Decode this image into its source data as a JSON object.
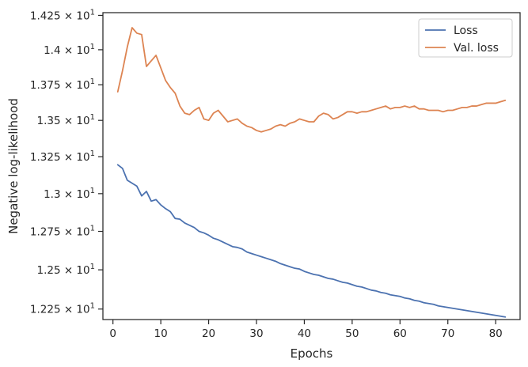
{
  "chart_data": {
    "type": "line",
    "xlabel": "Epochs",
    "ylabel": "Negative log-likelihood",
    "xlim": [
      -2.1,
      85.1
    ],
    "ylim": [
      12.184,
      14.27
    ],
    "x_ticks": [
      0,
      10,
      20,
      30,
      40,
      50,
      60,
      70,
      80
    ],
    "y_ticks": [
      {
        "value": 12.25,
        "mantissa": "1.225"
      },
      {
        "value": 12.5,
        "mantissa": "1.25"
      },
      {
        "value": 12.75,
        "mantissa": "1.275"
      },
      {
        "value": 13.0,
        "mantissa": "1.3"
      },
      {
        "value": 13.25,
        "mantissa": "1.325"
      },
      {
        "value": 13.5,
        "mantissa": "1.35"
      },
      {
        "value": 13.75,
        "mantissa": "1.375"
      },
      {
        "value": 14.0,
        "mantissa": "1.4"
      },
      {
        "value": 14.25,
        "mantissa": "1.425"
      }
    ],
    "y_tick_multiplier": "× 10",
    "y_tick_exponent": "1",
    "y_scale": "log",
    "grid": false,
    "legend_position": "top-right",
    "series": [
      {
        "name": "Loss",
        "color": "#4c72b0",
        "x": [
          1,
          2,
          3,
          4,
          5,
          6,
          7,
          8,
          9,
          10,
          11,
          12,
          13,
          14,
          15,
          16,
          17,
          18,
          19,
          20,
          21,
          22,
          23,
          24,
          25,
          26,
          27,
          28,
          29,
          30,
          31,
          32,
          33,
          34,
          35,
          36,
          37,
          38,
          39,
          40,
          41,
          42,
          43,
          44,
          45,
          46,
          47,
          48,
          49,
          50,
          51,
          52,
          53,
          54,
          55,
          56,
          57,
          58,
          59,
          60,
          61,
          62,
          63,
          64,
          65,
          66,
          67,
          68,
          69,
          70,
          71,
          72,
          73,
          74,
          75,
          76,
          77,
          78,
          79,
          80,
          81,
          82
        ],
        "values": [
          13.195,
          13.17,
          13.09,
          13.07,
          13.05,
          12.985,
          13.015,
          12.95,
          12.96,
          12.925,
          12.9,
          12.88,
          12.835,
          12.83,
          12.805,
          12.79,
          12.775,
          12.75,
          12.74,
          12.725,
          12.705,
          12.695,
          12.68,
          12.665,
          12.65,
          12.645,
          12.635,
          12.615,
          12.605,
          12.595,
          12.585,
          12.575,
          12.565,
          12.555,
          12.54,
          12.53,
          12.52,
          12.51,
          12.505,
          12.49,
          12.48,
          12.47,
          12.465,
          12.455,
          12.445,
          12.44,
          12.43,
          12.42,
          12.415,
          12.405,
          12.395,
          12.39,
          12.38,
          12.37,
          12.365,
          12.355,
          12.35,
          12.34,
          12.335,
          12.33,
          12.32,
          12.315,
          12.305,
          12.3,
          12.29,
          12.285,
          12.28,
          12.27,
          12.265,
          12.26,
          12.255,
          12.25,
          12.245,
          12.24,
          12.235,
          12.23,
          12.225,
          12.22,
          12.215,
          12.21,
          12.205,
          12.2
        ]
      },
      {
        "name": "Val. loss",
        "color": "#dd8452",
        "x": [
          1,
          2,
          3,
          4,
          5,
          6,
          7,
          8,
          9,
          10,
          11,
          12,
          13,
          14,
          15,
          16,
          17,
          18,
          19,
          20,
          21,
          22,
          23,
          24,
          25,
          26,
          27,
          28,
          29,
          30,
          31,
          32,
          33,
          34,
          35,
          36,
          37,
          38,
          39,
          40,
          41,
          42,
          43,
          44,
          45,
          46,
          47,
          48,
          49,
          50,
          51,
          52,
          53,
          54,
          55,
          56,
          57,
          58,
          59,
          60,
          61,
          62,
          63,
          64,
          65,
          66,
          67,
          68,
          69,
          70,
          71,
          72,
          73,
          74,
          75,
          76,
          77,
          78,
          79,
          80,
          81,
          82
        ],
        "values": [
          13.7,
          13.85,
          14.02,
          14.16,
          14.12,
          14.11,
          13.88,
          13.92,
          13.96,
          13.87,
          13.78,
          13.73,
          13.69,
          13.6,
          13.55,
          13.54,
          13.57,
          13.59,
          13.51,
          13.5,
          13.55,
          13.57,
          13.53,
          13.49,
          13.5,
          13.51,
          13.48,
          13.46,
          13.45,
          13.43,
          13.42,
          13.43,
          13.44,
          13.46,
          13.47,
          13.46,
          13.48,
          13.49,
          13.51,
          13.5,
          13.49,
          13.49,
          13.53,
          13.55,
          13.54,
          13.51,
          13.52,
          13.54,
          13.56,
          13.56,
          13.55,
          13.56,
          13.56,
          13.57,
          13.58,
          13.59,
          13.6,
          13.58,
          13.59,
          13.59,
          13.6,
          13.59,
          13.6,
          13.58,
          13.58,
          13.57,
          13.57,
          13.57,
          13.56,
          13.57,
          13.57,
          13.58,
          13.59,
          13.59,
          13.6,
          13.6,
          13.61,
          13.62,
          13.62,
          13.62,
          13.63,
          13.64
        ]
      }
    ]
  }
}
